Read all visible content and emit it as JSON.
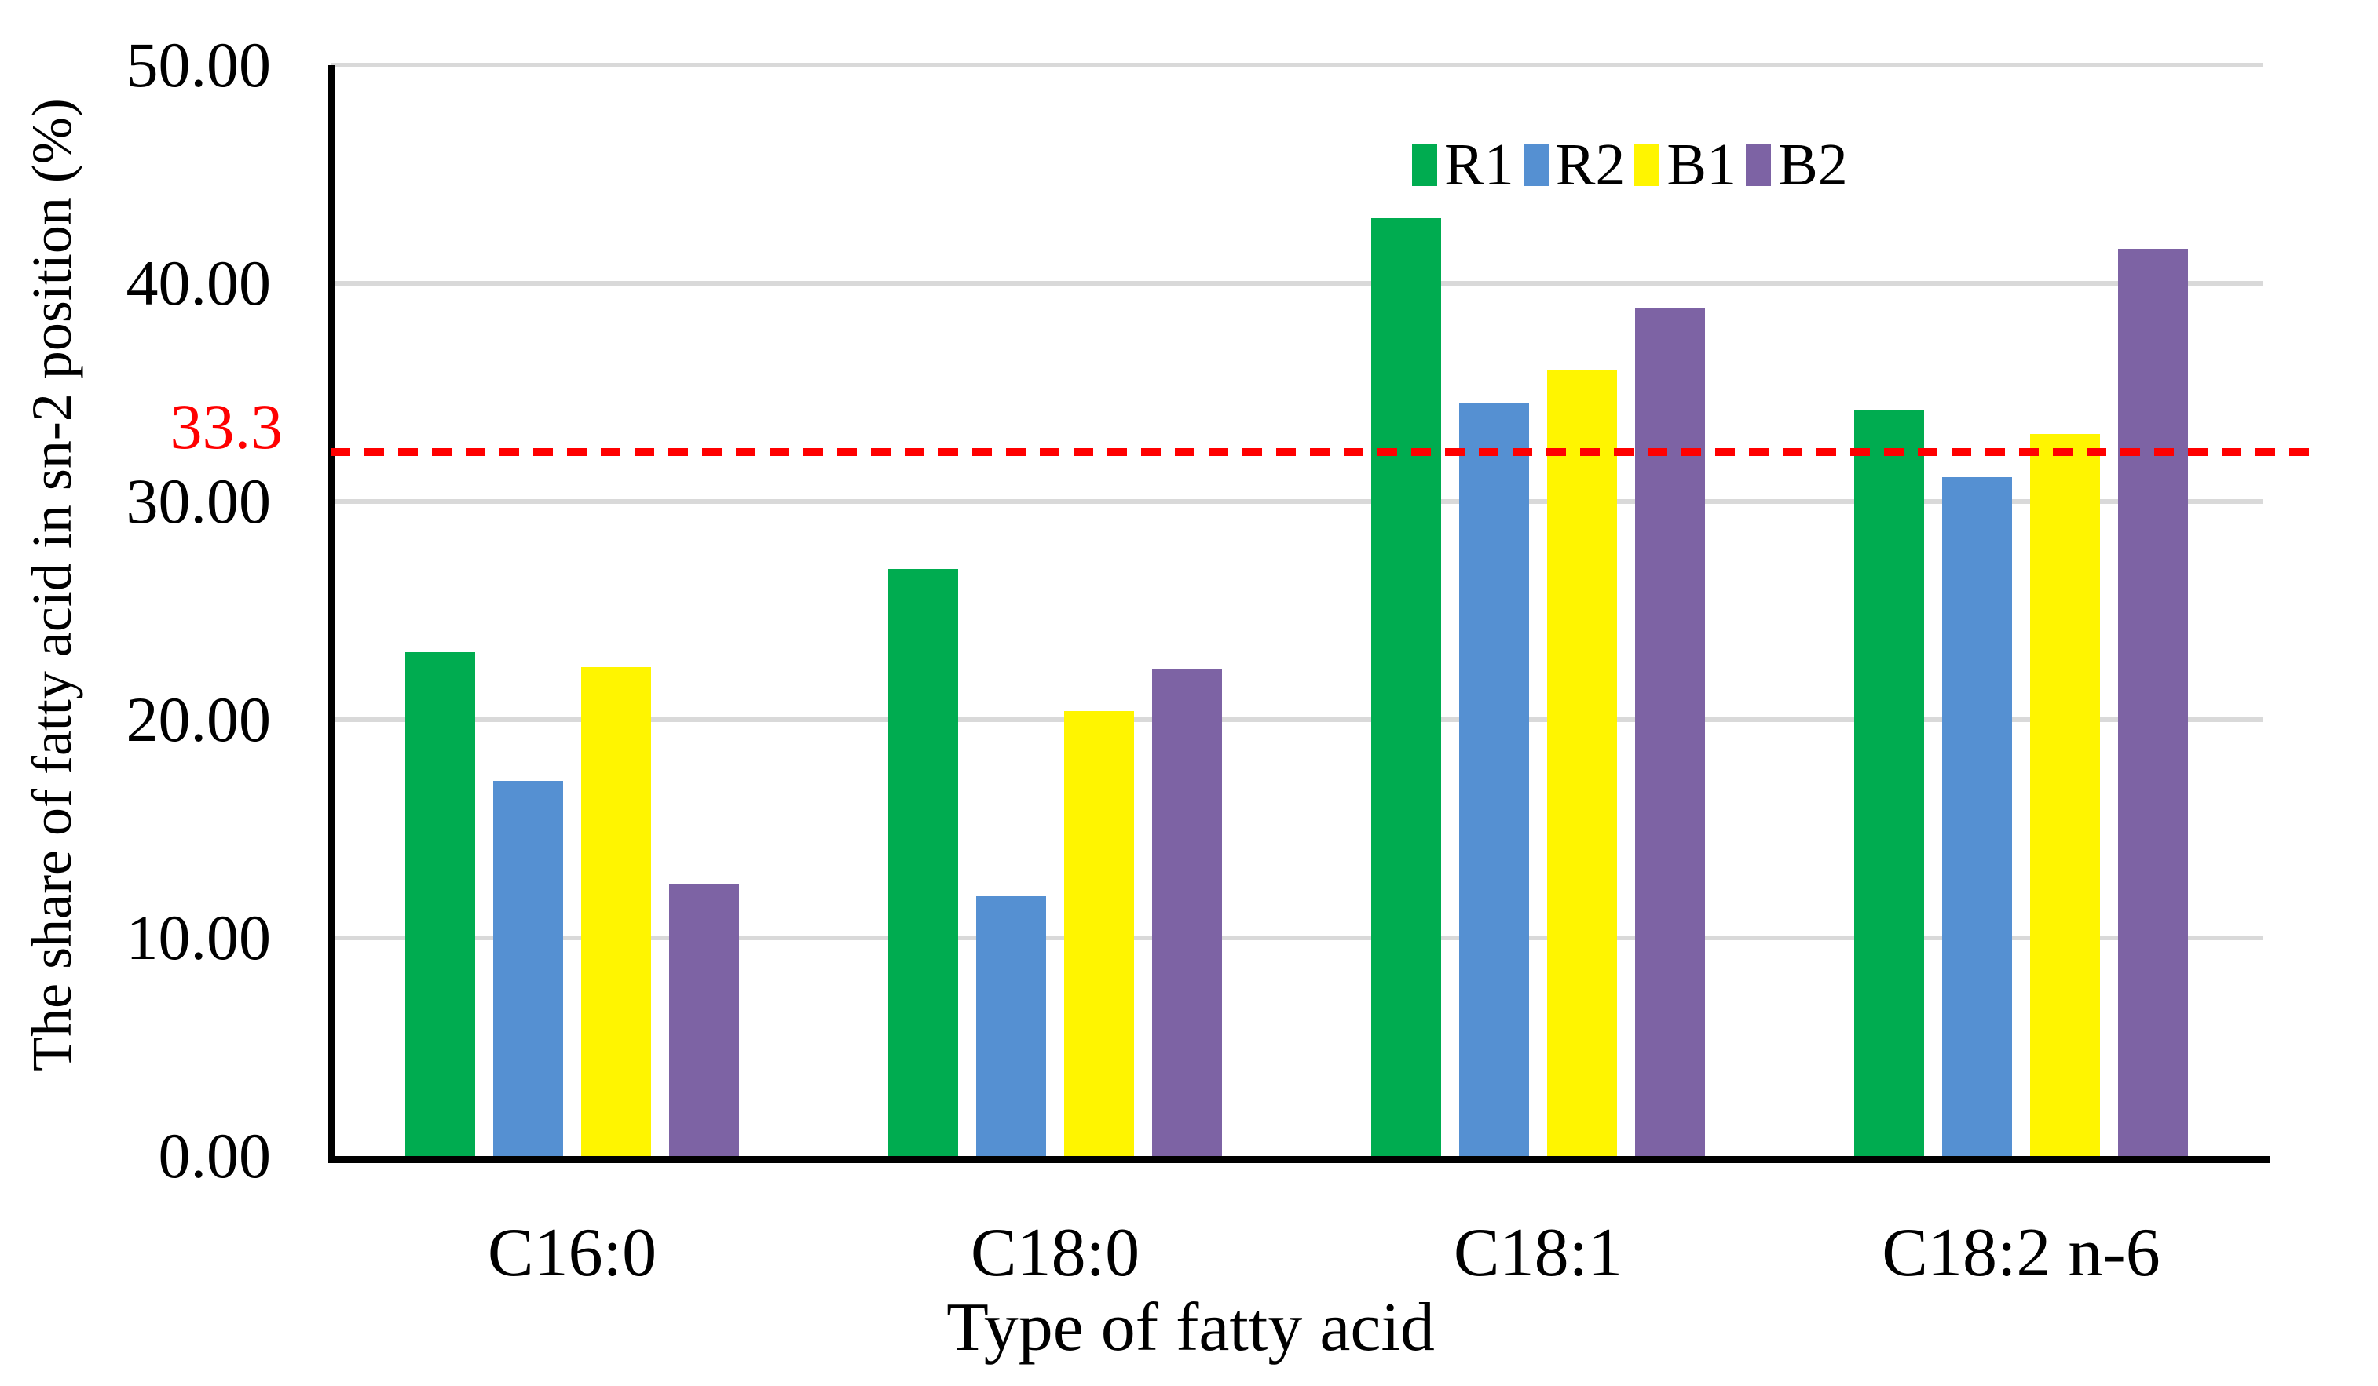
{
  "chart_data": {
    "type": "bar",
    "categories": [
      "C16:0",
      "C18:0",
      "C18:1",
      "C18:2 n-6"
    ],
    "series": [
      {
        "name": "R1",
        "color": "#00AC50",
        "values": [
          23.1,
          26.9,
          43.0,
          34.2
        ]
      },
      {
        "name": "R2",
        "color": "#5590D2",
        "values": [
          17.2,
          11.9,
          34.5,
          31.1
        ]
      },
      {
        "name": "B1",
        "color": "#FFF500",
        "values": [
          22.4,
          20.4,
          36.0,
          33.1
        ]
      },
      {
        "name": "B2",
        "color": "#7D63A4",
        "values": [
          12.5,
          22.3,
          38.9,
          41.6
        ]
      }
    ],
    "xlabel": "Type of fatty acid",
    "ylabel": "The share of fatty acid in sn-2 position (%)",
    "ylim": [
      0,
      50
    ],
    "yticks": [
      {
        "label": "50.00",
        "value": 50
      },
      {
        "label": "40.00",
        "value": 40
      },
      {
        "label": "30.00",
        "value": 30
      },
      {
        "label": "20.00",
        "value": 20
      },
      {
        "label": "10.00",
        "value": 10
      },
      {
        "label": "0.00",
        "value": 0
      }
    ],
    "grid": "horizontal",
    "gridline_color": "#D9D9D9",
    "axis_color": "#000000",
    "legend": {
      "position": "top-right",
      "items": [
        "R1",
        "R2",
        "B1",
        "B2"
      ]
    },
    "reference_line": {
      "label": "33.3",
      "value": 33.3,
      "line_y_value": 32.25,
      "color": "#FF0000",
      "style": "dashed"
    }
  }
}
